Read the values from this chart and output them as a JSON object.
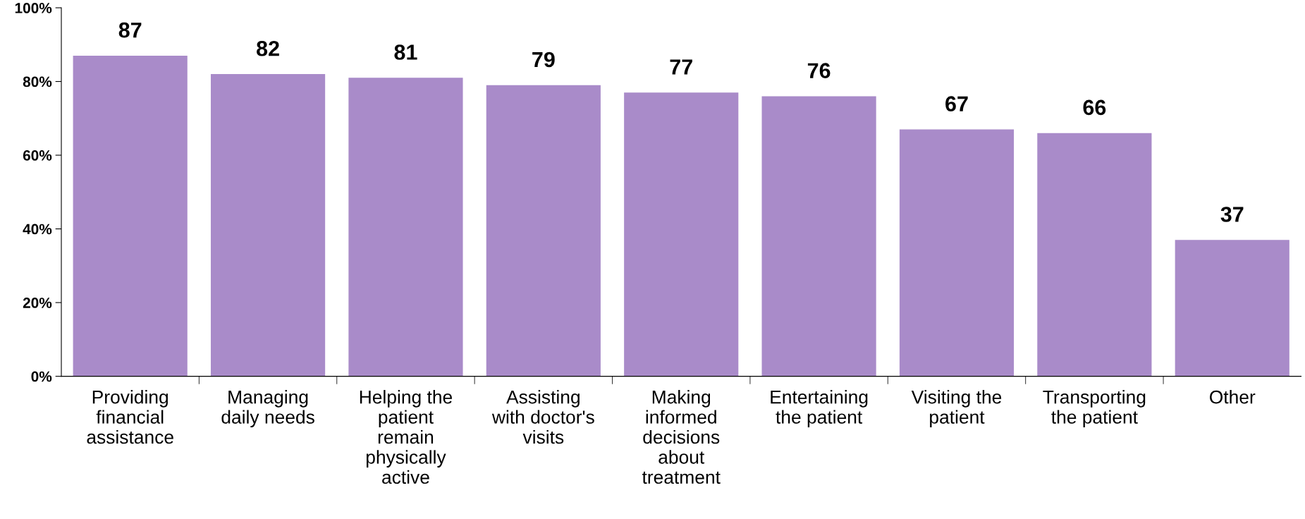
{
  "chart_data": {
    "type": "bar",
    "categories": [
      "Providing\nfinancial\nassistance",
      "Managing\ndaily needs",
      "Helping the\npatient\nremain\nphysically\nactive",
      "Assisting\nwith doctor's\nvisits",
      "Making\ninformed\ndecisions\nabout\ntreatment",
      "Entertaining\nthe patient",
      "Visiting the\npatient",
      "Transporting\nthe patient",
      "Other"
    ],
    "values": [
      87,
      82,
      81,
      79,
      77,
      76,
      67,
      66,
      37
    ],
    "color": "#a98bc9",
    "data_labels": true,
    "ylim": [
      0,
      100
    ],
    "yticks": [
      {
        "value": 0,
        "label": "0%"
      },
      {
        "value": 20,
        "label": "20%"
      },
      {
        "value": 40,
        "label": "40%"
      },
      {
        "value": 60,
        "label": "60%"
      },
      {
        "value": 80,
        "label": "80%"
      },
      {
        "value": 100,
        "label": "100%"
      }
    ],
    "grid": false
  }
}
